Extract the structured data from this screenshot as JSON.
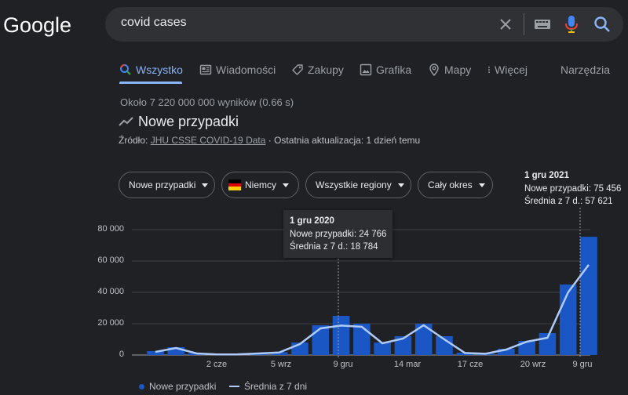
{
  "logo": {
    "text": "Google"
  },
  "search": {
    "query": "covid cases"
  },
  "tabs": [
    {
      "label": "Wszystko",
      "icon": "search-icon"
    },
    {
      "label": "Wiadomości",
      "icon": "news-icon"
    },
    {
      "label": "Zakupy",
      "icon": "tag-icon"
    },
    {
      "label": "Grafika",
      "icon": "image-icon"
    },
    {
      "label": "Mapy",
      "icon": "map-pin-icon"
    },
    {
      "label": "Więcej",
      "icon": "more-vert-icon"
    }
  ],
  "tools_label": "Narzędzia",
  "results_count": "Około 7 220 000 000 wyników (0.66 s)",
  "panel": {
    "title": "Nowe przypadki",
    "source_label": "Źródło:",
    "source_link": "JHU CSSE COVID-19 Data",
    "update_text": "· Ostatnia aktualizacja: 1 dzień temu"
  },
  "filters": [
    {
      "label": "Nowe przypadki"
    },
    {
      "label": "Niemcy",
      "flag": [
        "#000000",
        "#dd0000",
        "#ffce00"
      ]
    },
    {
      "label": "Wszystkie regiony"
    },
    {
      "label": "Cały okres"
    }
  ],
  "tooltips": [
    {
      "date": "1 gru 2020",
      "line1": "Nowe przypadki: 24 766",
      "line2": "Średnia z 7 d.: 18 784"
    },
    {
      "date": "1 gru 2021",
      "line1": "Nowe przypadki: 75 456",
      "line2": "Średnia z 7 d.: 57 621"
    }
  ],
  "legend": {
    "bars": "Nowe przypadki",
    "line": "Średnia z 7 dni"
  },
  "colors": {
    "bar": "#1a56c4",
    "line": "#aecbfa",
    "accent": "#8ab4f8"
  },
  "chart_data": {
    "type": "bar",
    "y_tick_labels": [
      "0",
      "20 000",
      "40 000",
      "60 000",
      "80 000"
    ],
    "x_tick_labels": [
      "2 cze",
      "5 wrz",
      "9 gru",
      "14 mar",
      "17 cze",
      "20 wrz",
      "9 gru"
    ],
    "ylim": [
      0,
      90000
    ],
    "grid": true,
    "legend_position": "bottom",
    "x": [
      "2020-03",
      "2020-04",
      "2020-05",
      "2020-06",
      "2020-07",
      "2020-08",
      "2020-09",
      "2020-10",
      "2020-11",
      "2020-12",
      "2021-01",
      "2021-02",
      "2021-03",
      "2021-04",
      "2021-05",
      "2021-06",
      "2021-07",
      "2021-08",
      "2021-09",
      "2021-10",
      "2021-11",
      "2021-12"
    ],
    "series": [
      {
        "name": "Nowe przypadki",
        "values": [
          2500,
          5000,
          1200,
          500,
          500,
          1200,
          1800,
          8000,
          19000,
          25000,
          20000,
          8000,
          12000,
          20000,
          12000,
          1500,
          900,
          4000,
          9000,
          14000,
          45000,
          75456
        ]
      },
      {
        "name": "Średnia z 7 dni",
        "values": [
          2000,
          4500,
          1000,
          400,
          450,
          1000,
          1600,
          7000,
          17000,
          18784,
          18000,
          7500,
          10500,
          19000,
          10000,
          1300,
          800,
          3500,
          8500,
          11000,
          40000,
          57621
        ]
      }
    ]
  }
}
